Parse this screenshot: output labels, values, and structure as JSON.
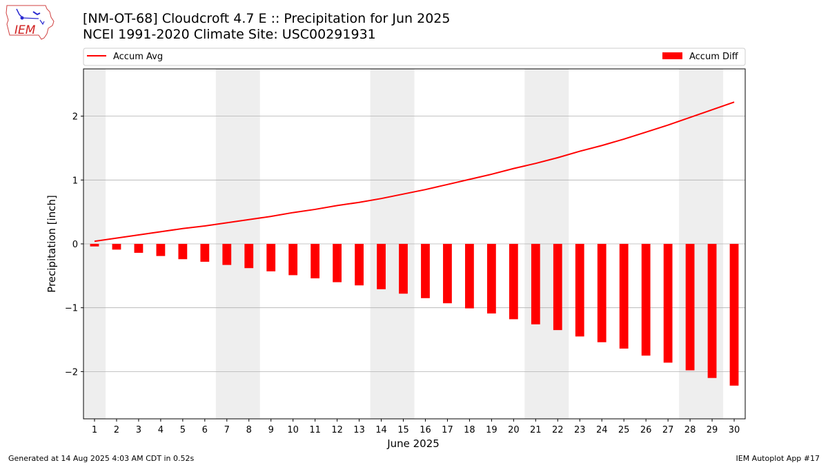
{
  "header": {
    "title": "[NM-OT-68] Cloudcroft 4.7 E :: Precipitation for Jun 2025",
    "subtitle": "NCEI 1991-2020 Climate Site: USC00291931",
    "logo_text": "IEM"
  },
  "footer": {
    "generated": "Generated at 14 Aug 2025 4:03 AM CDT in 0.52s",
    "app": "IEM Autoplot App #17"
  },
  "chart_data": {
    "type": "bar",
    "title": "[NM-OT-68] Cloudcroft 4.7 E :: Precipitation for Jun 2025",
    "subtitle": "NCEI 1991-2020 Climate Site: USC00291931",
    "xlabel": "June 2025",
    "ylabel": "Precipitation [inch]",
    "ylim": [
      -2.74,
      2.74
    ],
    "xlim": [
      0.5,
      30.5
    ],
    "yticks": [
      -2,
      -1,
      0,
      1,
      2
    ],
    "ytick_labels": [
      "−2",
      "−1",
      "0",
      "1",
      "2"
    ],
    "categories": [
      "1",
      "2",
      "3",
      "4",
      "5",
      "6",
      "7",
      "8",
      "9",
      "10",
      "11",
      "12",
      "13",
      "14",
      "15",
      "16",
      "17",
      "18",
      "19",
      "20",
      "21",
      "22",
      "23",
      "24",
      "25",
      "26",
      "27",
      "28",
      "29",
      "30"
    ],
    "grid": "horizontal",
    "legend_placement": "top, above plot",
    "weekend_shading": [
      [
        0.5,
        1.5
      ],
      [
        6.5,
        8.5
      ],
      [
        13.5,
        15.5
      ],
      [
        20.5,
        22.5
      ],
      [
        27.5,
        29.5
      ]
    ],
    "colors": {
      "line": "#ff0000",
      "bar": "#ff0000",
      "shade": "#eeeeee",
      "grid": "#b0b0b0"
    },
    "series": [
      {
        "name": "Accum Avg",
        "kind": "line",
        "values": [
          0.04,
          0.09,
          0.14,
          0.19,
          0.24,
          0.28,
          0.33,
          0.38,
          0.43,
          0.49,
          0.54,
          0.6,
          0.65,
          0.71,
          0.78,
          0.85,
          0.93,
          1.01,
          1.09,
          1.18,
          1.26,
          1.35,
          1.45,
          1.54,
          1.64,
          1.75,
          1.86,
          1.98,
          2.1,
          2.22
        ]
      },
      {
        "name": "Accum Diff",
        "kind": "bar",
        "values": [
          -0.04,
          -0.09,
          -0.14,
          -0.19,
          -0.24,
          -0.28,
          -0.33,
          -0.38,
          -0.43,
          -0.49,
          -0.54,
          -0.6,
          -0.65,
          -0.71,
          -0.78,
          -0.85,
          -0.93,
          -1.01,
          -1.09,
          -1.18,
          -1.26,
          -1.35,
          -1.45,
          -1.54,
          -1.64,
          -1.75,
          -1.86,
          -1.98,
          -2.1,
          -2.22
        ]
      }
    ]
  }
}
